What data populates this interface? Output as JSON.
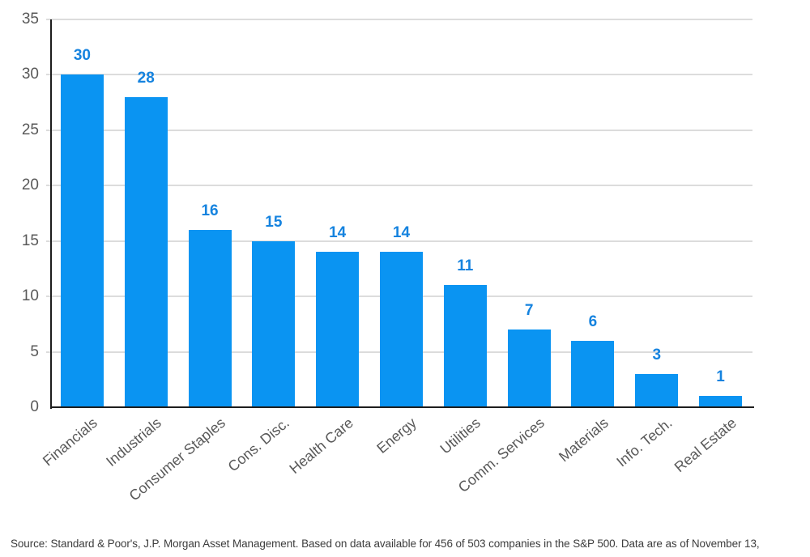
{
  "chart_data": {
    "type": "bar",
    "categories": [
      "Financials",
      "Industrials",
      "Consumer Staples",
      "Cons. Disc.",
      "Health Care",
      "Energy",
      "Utilities",
      "Comm. Services",
      "Materials",
      "Info. Tech.",
      "Real Estate"
    ],
    "values": [
      30,
      28,
      16,
      15,
      14,
      14,
      11,
      7,
      6,
      3,
      1
    ],
    "value_labels": [
      "30",
      "28",
      "16",
      "15",
      "14",
      "14",
      "11",
      "7",
      "6",
      "3",
      "1"
    ],
    "yticks": [
      0,
      5,
      10,
      15,
      20,
      25,
      30,
      35
    ],
    "ylim": [
      0,
      35
    ],
    "title": "",
    "xlabel": "",
    "ylabel": "",
    "grid": true,
    "legend": "none",
    "colors": {
      "bar": "#0a94f2",
      "value_label": "#1583df",
      "axis_text": "#595959",
      "gridline": "#dcdcdc",
      "axis_line": "#1d1d1d",
      "source_text": "#3d3d3d"
    }
  },
  "footer": {
    "source_text": "Source: Standard & Poor's, J.P. Morgan Asset Management. Based on data available for 456 of 503 companies in the S&P 500. Data are as of November 13,"
  }
}
